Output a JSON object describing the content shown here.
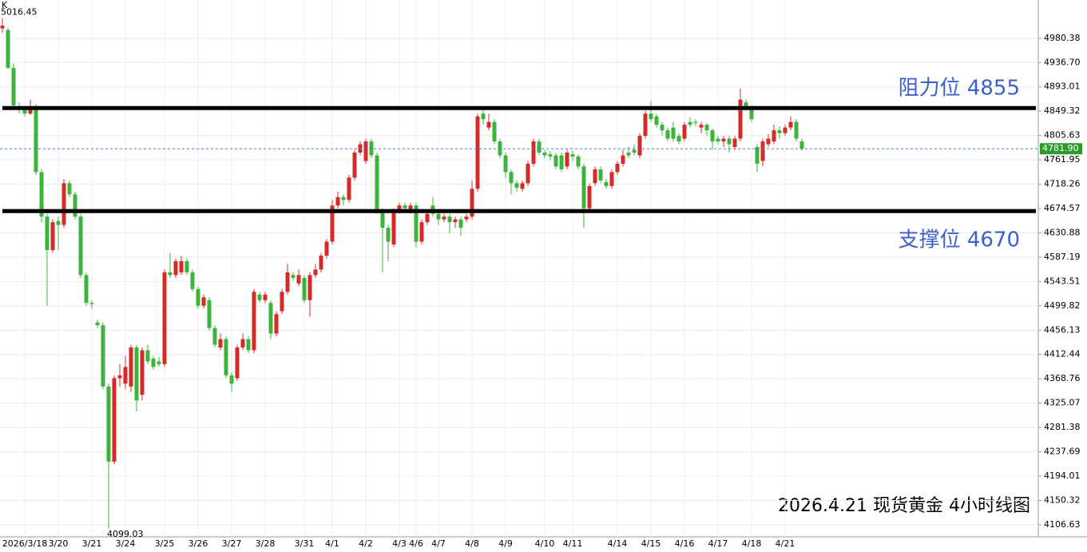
{
  "chart_data": {
    "type": "candlestick",
    "title": "K",
    "subtitle": "2026.4.21 现货黄金 4小时线图",
    "up_color": "#d62a2a",
    "down_color": "#3cb43c",
    "ylim": [
      4085,
      5049
    ],
    "yticks": [
      4980.38,
      {
        "value": 4936.7,
        "label": "4936.70"
      },
      4893.01,
      4849.32,
      4805.63,
      4761.95,
      4718.26,
      4674.57,
      4630.88,
      4587.19,
      4543.51,
      4499.82,
      4456.13,
      4412.44,
      4368.76,
      4325.07,
      4281.38,
      4237.69,
      4194.01,
      4150.32,
      4106.63
    ],
    "grid": true,
    "last_price": {
      "value": 4781.9,
      "label": "4781.90"
    },
    "reference_lines": [
      {
        "value": 4855,
        "label": "阻力位 4855"
      },
      {
        "value": 4670,
        "label": "支撑位 4670"
      }
    ],
    "categories": [
      null,
      null,
      null,
      null,
      "2026/3/18",
      null,
      null,
      null,
      null,
      null,
      "3/20",
      null,
      null,
      null,
      null,
      null,
      "3/21",
      null,
      null,
      null,
      null,
      null,
      "3/24",
      null,
      null,
      null,
      null,
      null,
      null,
      "3/25",
      null,
      null,
      null,
      null,
      null,
      "3/26",
      null,
      null,
      null,
      null,
      null,
      "3/27",
      null,
      null,
      null,
      null,
      null,
      "3/28",
      null,
      null,
      null,
      null,
      null,
      null,
      "3/31",
      null,
      null,
      null,
      null,
      "4/1",
      null,
      null,
      null,
      null,
      null,
      "4/2",
      null,
      null,
      null,
      null,
      null,
      "4/3",
      null,
      null,
      "4/6",
      null,
      null,
      null,
      "4/7",
      null,
      null,
      null,
      null,
      null,
      "4/8",
      null,
      null,
      null,
      null,
      null,
      "4/9",
      null,
      null,
      null,
      null,
      null,
      null,
      "4/10",
      null,
      null,
      null,
      null,
      "4/11",
      null,
      null,
      null,
      null,
      null,
      null,
      null,
      "4/14",
      null,
      null,
      null,
      null,
      null,
      "4/15",
      null,
      null,
      null,
      null,
      null,
      "4/16",
      null,
      null,
      null,
      null,
      null,
      "4/17",
      null,
      null,
      null,
      null,
      null,
      "4/18",
      null,
      null,
      null,
      null,
      null,
      "4/21",
      null,
      null,
      null
    ],
    "open": [
      4998,
      4995,
      4927,
      4858,
      4853,
      4845,
      4858,
      4740,
      4660,
      4600,
      4652,
      4645,
      4720,
      4700,
      4660,
      4555,
      4505,
      4470,
      4465,
      4355,
      4220,
      4370,
      4360,
      4355,
      4425,
      4340,
      4420,
      4405,
      4400,
      4395,
      4560,
      4555,
      4560,
      4580,
      4560,
      4530,
      4500,
      4510,
      4460,
      4425,
      4440,
      4375,
      4370,
      4425,
      4440,
      4420,
      4520,
      4510,
      4505,
      4450,
      4490,
      4525,
      4555,
      4540,
      4550,
      4510,
      4555,
      4565,
      4590,
      4615,
      4680,
      4695,
      4690,
      4730,
      4775,
      4760,
      4795,
      4770,
      4670,
      4640,
      4610,
      4670,
      4680,
      4670,
      4680,
      4615,
      4650,
      4680,
      4665,
      4655,
      4660,
      4650,
      4655,
      4655,
      4660,
      4710,
      4845,
      4820,
      4830,
      4795,
      4770,
      4740,
      4720,
      4710,
      4720,
      4755,
      4795,
      4775,
      4772,
      4770,
      4770,
      4750,
      4772,
      4768,
      4750,
      4675,
      4720,
      4745,
      4722,
      4715,
      4740,
      4755,
      4775,
      4780,
      4770,
      4805,
      4845,
      4840,
      4825,
      4815,
      4820,
      4805,
      4800,
      4830,
      4830,
      4820,
      4825,
      4815,
      4800,
      4795,
      4800,
      4785,
      4800,
      4865,
      4855,
      4785,
      4760,
      4790,
      4795,
      4815,
      4810,
      4820,
      4830,
      4795
    ],
    "high": [
      5016.45,
      5000,
      4935,
      4865,
      4858,
      4870,
      4862,
      4745,
      4665,
      4655,
      4660,
      4728,
      4725,
      4705,
      4665,
      4560,
      4510,
      4475,
      4470,
      4360,
      4375,
      4395,
      4410,
      4430,
      4430,
      4425,
      4430,
      4410,
      4408,
      4565,
      4595,
      4585,
      4590,
      4585,
      4565,
      4535,
      4520,
      4515,
      4465,
      4450,
      4445,
      4380,
      4430,
      4450,
      4445,
      4530,
      4525,
      4525,
      4510,
      4490,
      4530,
      4575,
      4560,
      4565,
      4555,
      4560,
      4575,
      4595,
      4620,
      4690,
      4705,
      4700,
      4735,
      4780,
      4795,
      4800,
      4800,
      4775,
      4675,
      4645,
      4675,
      4685,
      4685,
      4685,
      4685,
      4655,
      4670,
      4695,
      4670,
      4665,
      4665,
      4660,
      4660,
      4665,
      4725,
      4845,
      4855,
      4845,
      4835,
      4800,
      4775,
      4745,
      4725,
      4725,
      4760,
      4800,
      4800,
      4780,
      4778,
      4775,
      4775,
      4780,
      4778,
      4772,
      4755,
      4720,
      4750,
      4750,
      4728,
      4745,
      4760,
      4780,
      4785,
      4790,
      4810,
      4850,
      4868,
      4845,
      4830,
      4820,
      4830,
      4810,
      4830,
      4838,
      4835,
      4830,
      4828,
      4818,
      4805,
      4805,
      4805,
      4805,
      4890,
      4870,
      4860,
      4790,
      4800,
      4808,
      4825,
      4822,
      4825,
      4840,
      4835,
      4800
    ],
    "low": [
      4990,
      4925,
      4855,
      4845,
      4840,
      4842,
      4735,
      4650,
      4500,
      4595,
      4600,
      4640,
      4695,
      4655,
      4550,
      4500,
      4495,
      4460,
      4350,
      4099.03,
      4215,
      4355,
      4350,
      4345,
      4310,
      4330,
      4395,
      4385,
      4390,
      4390,
      4550,
      4550,
      4555,
      4555,
      4525,
      4495,
      4495,
      4455,
      4425,
      4420,
      4370,
      4345,
      4365,
      4420,
      4415,
      4415,
      4505,
      4505,
      4440,
      4445,
      4485,
      4520,
      4545,
      4535,
      4505,
      4480,
      4550,
      4560,
      4585,
      4610,
      4675,
      4680,
      4685,
      4725,
      4770,
      4755,
      4765,
      4665,
      4560,
      4580,
      4605,
      4665,
      4670,
      4665,
      4605,
      4610,
      4645,
      4660,
      4645,
      4650,
      4630,
      4640,
      4625,
      4650,
      4655,
      4705,
      4825,
      4815,
      4790,
      4765,
      4730,
      4700,
      4705,
      4705,
      4715,
      4750,
      4770,
      4765,
      4762,
      4745,
      4740,
      4745,
      4760,
      4745,
      4640,
      4670,
      4715,
      4720,
      4710,
      4710,
      4735,
      4750,
      4765,
      4770,
      4765,
      4800,
      4830,
      4820,
      4805,
      4795,
      4795,
      4790,
      4795,
      4820,
      4822,
      4810,
      4805,
      4780,
      4790,
      4785,
      4775,
      4780,
      4795,
      4850,
      4830,
      4740,
      4750,
      4785,
      4790,
      4800,
      4805,
      4815,
      4795,
      4778
    ],
    "close": [
      5003,
      4927,
      4860,
      4855,
      4845,
      4858,
      4740,
      4660,
      4600,
      4650,
      4645,
      4720,
      4700,
      4660,
      4555,
      4505,
      4503,
      4465,
      4355,
      4220,
      4370,
      4375,
      4390,
      4425,
      4330,
      4420,
      4400,
      4390,
      4395,
      4560,
      4555,
      4580,
      4580,
      4560,
      4530,
      4500,
      4515,
      4460,
      4430,
      4440,
      4375,
      4360,
      4425,
      4440,
      4420,
      4525,
      4510,
      4520,
      4450,
      4485,
      4525,
      4560,
      4550,
      4555,
      4510,
      4555,
      4565,
      4590,
      4615,
      4680,
      4695,
      4690,
      4730,
      4775,
      4790,
      4795,
      4770,
      4670,
      4640,
      4615,
      4670,
      4680,
      4675,
      4680,
      4615,
      4650,
      4665,
      4665,
      4655,
      4660,
      4650,
      4655,
      4640,
      4660,
      4710,
      4840,
      4835,
      4830,
      4795,
      4770,
      4740,
      4720,
      4712,
      4720,
      4755,
      4795,
      4775,
      4770,
      4768,
      4750,
      4745,
      4775,
      4768,
      4750,
      4675,
      4715,
      4745,
      4725,
      4715,
      4740,
      4755,
      4770,
      4770,
      4775,
      4805,
      4845,
      4835,
      4825,
      4815,
      4800,
      4800,
      4795,
      4825,
      4825,
      4828,
      4825,
      4815,
      4795,
      4795,
      4800,
      4790,
      4800,
      4870,
      4855,
      4835,
      4755,
      4795,
      4800,
      4815,
      4810,
      4820,
      4830,
      4800,
      4781.9
    ]
  }
}
